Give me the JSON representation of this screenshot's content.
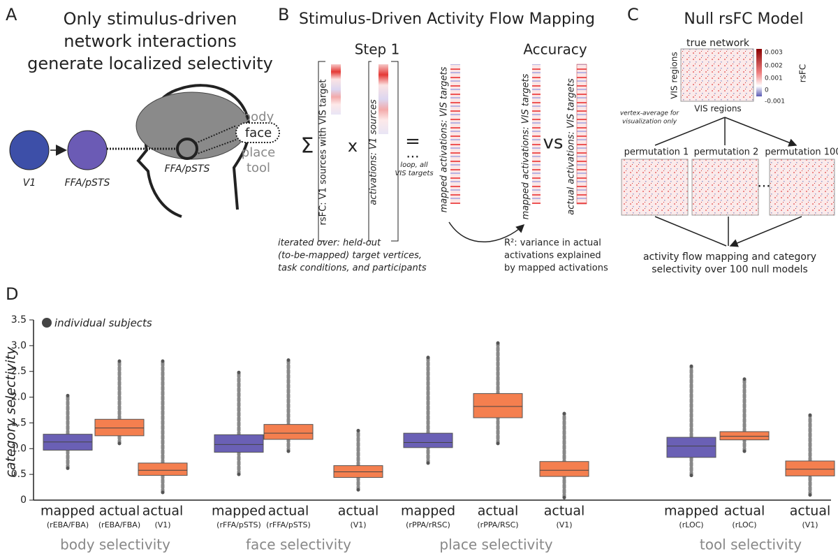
{
  "panel_a": {
    "letter": "A",
    "title_lines": [
      "Only stimulus-driven",
      "network interactions",
      "generate localized selectivity"
    ],
    "node_1": "V1",
    "node_2": "FFA/pSTS",
    "brain_region": "FFA/pSTS",
    "categories": [
      "body",
      "face",
      "place",
      "tool"
    ]
  },
  "panel_b": {
    "letter": "B",
    "title": "Stimulus-Driven Activity Flow Mapping",
    "step": "Step 1",
    "accuracy": "Accuracy",
    "sum": "Σ",
    "times": "x",
    "equals": "=",
    "ellipsis": "...",
    "loop_lines": [
      "loop, all",
      "VIS targets"
    ],
    "rsfc_label": "rsFC: V1 sources with VIS target",
    "activations_label": "activations: V1 sources",
    "mapped_label_1": "mapped activations: VIS targets",
    "mapped_label_2": "mapped activations: VIS targets",
    "vs": "vs",
    "actual_label": "actual activations: VIS targets",
    "iterated_lines": [
      "iterated over: held-out",
      "(to-be-mapped) target vertices,",
      "task conditions, and participants"
    ],
    "r2_lines": [
      "R²: variance in actual",
      "activations explained",
      "by mapped activations"
    ]
  },
  "panel_c": {
    "letter": "C",
    "title": "Null rsFC Model",
    "true_network": "true network",
    "y_region": "VIS regions",
    "x_region": "VIS regions",
    "colorbar_ticks": [
      "0.003",
      "0.002",
      "0.001",
      "0",
      "-0.001"
    ],
    "colorbar_label": "rsFC",
    "note_lines": [
      "vertex-average for",
      "visualization only"
    ],
    "permutations": [
      "permutation 1",
      "permutation 2",
      "permutation 100"
    ],
    "ellipsis": "...",
    "result_lines": [
      "activity flow mapping and category",
      "selectivity over 100 null models"
    ]
  },
  "chart_data": {
    "type": "box",
    "letter": "D",
    "ylabel": "category selectivity",
    "legend": "individual subjects",
    "ylim": [
      0,
      3.5
    ],
    "yticks": [
      0,
      0.5,
      {
        "value": 1,
        "label": "1.0"
      },
      1.5,
      {
        "value": 2,
        "label": "2.0"
      },
      2.5,
      {
        "value": 3,
        "label": "3.0"
      },
      3.5
    ],
    "groups": [
      {
        "title": "body selectivity",
        "boxes": [
          {
            "label": "mapped",
            "sublabel": "(rEBA/FBA)",
            "color": "#6a60b5",
            "min": 0.62,
            "q1": 0.97,
            "median": 1.13,
            "q3": 1.28,
            "max": 2.03
          },
          {
            "label": "actual",
            "sublabel": "(rEBA/FBA)",
            "color": "#f47f4f",
            "min": 1.1,
            "q1": 1.25,
            "median": 1.4,
            "q3": 1.57,
            "max": 2.7
          },
          {
            "label": "actual",
            "sublabel": "(V1)",
            "color": "#f47f4f",
            "min": 0.15,
            "q1": 0.48,
            "median": 0.58,
            "q3": 0.72,
            "max": 2.7
          }
        ]
      },
      {
        "title": "face selectivity",
        "boxes": [
          {
            "label": "mapped",
            "sublabel": "(rFFA/pSTS)",
            "color": "#6a60b5",
            "min": 0.5,
            "q1": 0.93,
            "median": 1.08,
            "q3": 1.27,
            "max": 2.48
          },
          {
            "label": "actual",
            "sublabel": "(rFFA/pSTS)",
            "color": "#f47f4f",
            "min": 0.95,
            "q1": 1.18,
            "median": 1.3,
            "q3": 1.47,
            "max": 2.72
          },
          {
            "label": "actual",
            "sublabel": "(V1)",
            "color": "#f47f4f",
            "min": 0.2,
            "q1": 0.44,
            "median": 0.55,
            "q3": 0.67,
            "max": 1.35
          }
        ]
      },
      {
        "title": "place selectivity",
        "boxes": [
          {
            "label": "mapped",
            "sublabel": "(rPPA/rRSC)",
            "color": "#6a60b5",
            "min": 0.72,
            "q1": 1.02,
            "median": 1.12,
            "q3": 1.3,
            "max": 2.77
          },
          {
            "label": "actual",
            "sublabel": "(rPPA/RSC)",
            "color": "#f47f4f",
            "min": 1.1,
            "q1": 1.6,
            "median": 1.82,
            "q3": 2.07,
            "max": 3.05
          },
          {
            "label": "actual",
            "sublabel": "(V1)",
            "color": "#f47f4f",
            "min": 0.05,
            "q1": 0.46,
            "median": 0.58,
            "q3": 0.75,
            "max": 1.68
          }
        ]
      },
      {
        "title": "tool selectivity",
        "boxes": [
          {
            "label": "mapped",
            "sublabel": "(rLOC)",
            "color": "#6a60b5",
            "min": 0.48,
            "q1": 0.83,
            "median": 1.05,
            "q3": 1.22,
            "max": 2.6
          },
          {
            "label": "actual",
            "sublabel": "(rLOC)",
            "color": "#f47f4f",
            "min": 0.95,
            "q1": 1.17,
            "median": 1.24,
            "q3": 1.33,
            "max": 2.35
          },
          {
            "label": "actual",
            "sublabel": "(V1)",
            "color": "#f47f4f",
            "min": 0.1,
            "q1": 0.47,
            "median": 0.6,
            "q3": 0.76,
            "max": 1.65
          }
        ]
      }
    ]
  }
}
